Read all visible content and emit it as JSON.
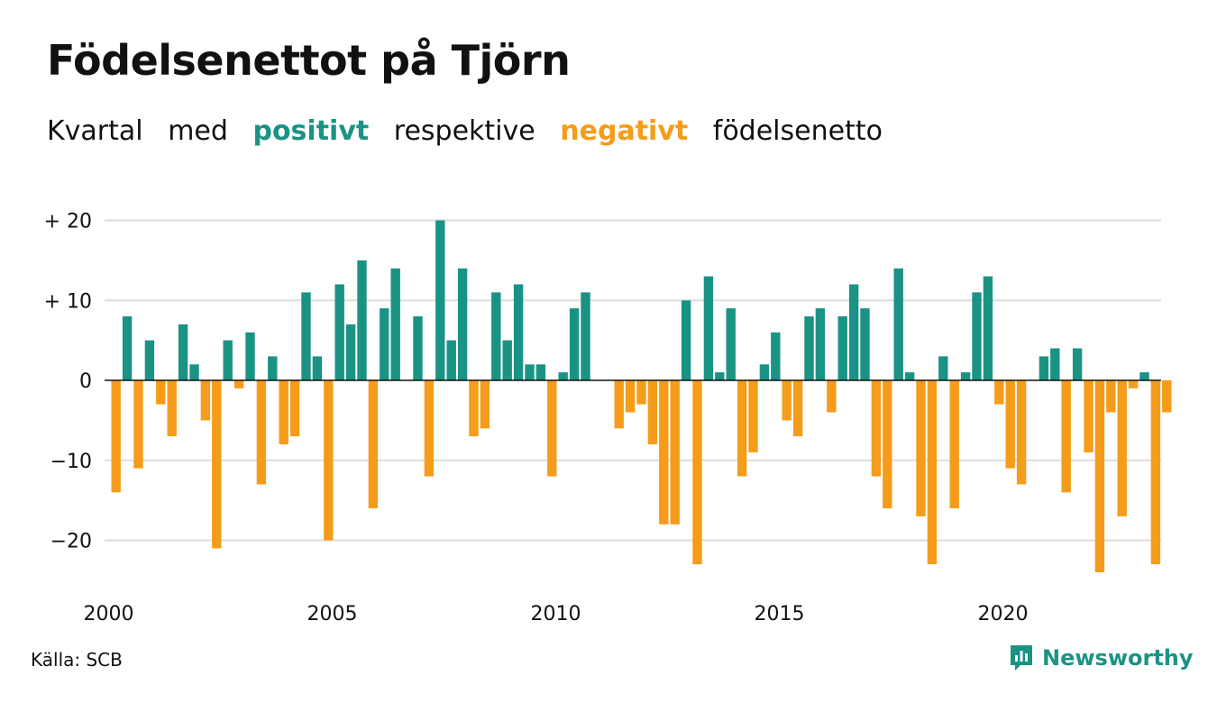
{
  "header": {
    "title": "Födelsenettot på Tjörn",
    "subtitle_parts": [
      "Kvartal",
      "med",
      "positivt",
      "respektive",
      "negativt",
      "födelsenetto"
    ]
  },
  "footer": {
    "source": "Källa: SCB",
    "brand": "Newsworthy",
    "brand_icon": "newsworthy-logo-icon"
  },
  "colors": {
    "positive": "#1a9385",
    "negative": "#f59c1a",
    "grid": "#dddddd",
    "zero": "#111111"
  },
  "chart_data": {
    "type": "bar",
    "x_start": "2000 Q1",
    "x_tick_labels": [
      "2000",
      "2005",
      "2010",
      "2015",
      "2020"
    ],
    "y_tick_labels": [
      "+ 20",
      "+ 10",
      "0",
      "−10",
      "−20"
    ],
    "y_ticks": [
      20,
      10,
      0,
      -10,
      -20
    ],
    "ylim": [
      -25,
      20
    ],
    "values": [
      -14,
      8,
      -11,
      5,
      -3,
      -7,
      7,
      2,
      -5,
      -21,
      5,
      -1,
      6,
      -13,
      3,
      -8,
      -7,
      11,
      3,
      -20,
      12,
      7,
      15,
      -16,
      9,
      14,
      0,
      8,
      -12,
      20,
      5,
      14,
      -7,
      -6,
      11,
      5,
      12,
      2,
      2,
      -12,
      1,
      9,
      11,
      0,
      0,
      -6,
      -4,
      -3,
      -8,
      -18,
      -18,
      10,
      -23,
      13,
      1,
      9,
      -12,
      -9,
      2,
      6,
      -5,
      -7,
      8,
      9,
      -4,
      8,
      12,
      9,
      -12,
      -16,
      14,
      1,
      -17,
      -23,
      3,
      -16,
      1,
      11,
      13,
      -3,
      -11,
      -13,
      0,
      3,
      4,
      -14,
      4,
      -9,
      -24,
      -4,
      -17,
      -1,
      1,
      -23,
      -4
    ]
  }
}
